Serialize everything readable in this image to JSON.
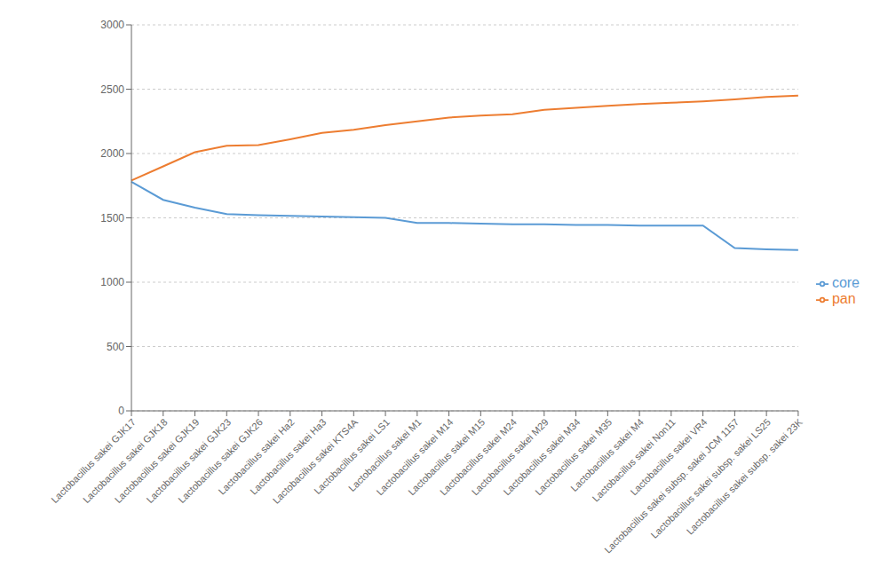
{
  "chart_data": {
    "type": "line",
    "categories": [
      "Lactobacillus sakei GJK17",
      "Lactobacillus sakei GJK18",
      "Lactobacillus sakei GJK19",
      "Lactobacillus sakei GJK23",
      "Lactobacillus sakei GJK26",
      "Lactobacillus sakei Ha2",
      "Lactobacillus sakei Ha3",
      "Lactobacillus sakei KTS4A",
      "Lactobacillus sakei LS1",
      "Lactobacillus sakei M1",
      "Lactobacillus sakei M14",
      "Lactobacillus sakei M15",
      "Lactobacillus sakei M24",
      "Lactobacillus sakei M29",
      "Lactobacillus sakei M34",
      "Lactobacillus sakei M35",
      "Lactobacillus sakei M4",
      "Lactobacillus sakei Non11",
      "Lactobacillus sakei VR4",
      "Lactobacillus sakei subsp. sakei JCM 1157",
      "Lactobacillus sakei subsp. sakei LS25",
      "Lactobacillus sakei subsp. sakei 23K"
    ],
    "series": [
      {
        "name": "core",
        "color": "#5B9BD5",
        "values": [
          1780,
          1640,
          1580,
          1530,
          1520,
          1515,
          1510,
          1505,
          1500,
          1460,
          1460,
          1455,
          1450,
          1450,
          1445,
          1445,
          1440,
          1440,
          1440,
          1265,
          1255,
          1250
        ]
      },
      {
        "name": "pan",
        "color": "#ED7D31",
        "values": [
          1790,
          1900,
          2010,
          2060,
          2065,
          2110,
          2160,
          2185,
          2220,
          2250,
          2280,
          2295,
          2305,
          2340,
          2355,
          2370,
          2385,
          2395,
          2405,
          2420,
          2440,
          2450
        ]
      }
    ],
    "ylim": [
      0,
      3000
    ],
    "yticks": [
      0,
      500,
      1000,
      1500,
      2000,
      2500,
      3000
    ],
    "grid": true,
    "legend": "right"
  }
}
